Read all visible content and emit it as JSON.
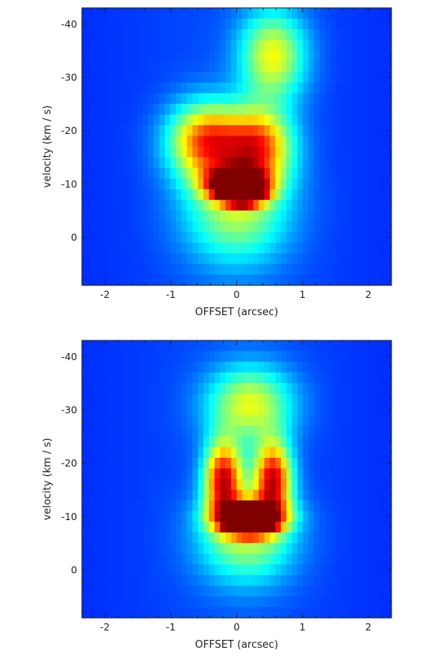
{
  "chart_data": [
    {
      "type": "heatmap",
      "title": "",
      "xlabel": "OFFSET (arcsec)",
      "ylabel": "velocity (km / s)",
      "xlim": [
        -2.35,
        2.35
      ],
      "ylim": [
        9,
        -43
      ],
      "x_ticks": [
        -2,
        -1,
        0,
        1,
        2
      ],
      "x_tick_labels": [
        "-2",
        "-1",
        "0",
        "1",
        "2"
      ],
      "y_ticks": [
        -40,
        -30,
        -20,
        -10,
        0
      ],
      "y_tick_labels": [
        "-40",
        "-30",
        "-20",
        "-10",
        "0"
      ],
      "colormap": "jet",
      "features": [
        {
          "x": 0.55,
          "y": -34,
          "sx": 0.35,
          "sy": 6,
          "amp": 0.42
        },
        {
          "x": 0.0,
          "y": -5,
          "sx": 0.55,
          "sy": 7,
          "amp": 0.35
        },
        {
          "x": -0.45,
          "y": -18,
          "sx": 0.4,
          "sy": 5,
          "amp": 0.6
        },
        {
          "x": 0.35,
          "y": -17,
          "sx": 0.35,
          "sy": 5,
          "amp": 0.55
        },
        {
          "x": 0.0,
          "y": -10,
          "sx": 0.3,
          "sy": 2,
          "amp": 0.9
        },
        {
          "x": 0.1,
          "y": -8,
          "sx": 0.2,
          "sy": 1.2,
          "amp": 1.0
        }
      ]
    },
    {
      "type": "heatmap",
      "title": "",
      "xlabel": "OFFSET (arcsec)",
      "ylabel": "velocity (km / s)",
      "xlim": [
        -2.35,
        2.35
      ],
      "ylim": [
        9,
        -43
      ],
      "x_ticks": [
        -2,
        -1,
        0,
        1,
        2
      ],
      "x_tick_labels": [
        "-2",
        "-1",
        "0",
        "1",
        "2"
      ],
      "y_ticks": [
        -40,
        -30,
        -20,
        -10,
        0
      ],
      "y_tick_labels": [
        "-40",
        "-30",
        "-20",
        "-10",
        "0"
      ],
      "colormap": "jet",
      "features": [
        {
          "x": 0.2,
          "y": -31,
          "sx": 0.45,
          "sy": 5,
          "amp": 0.4
        },
        {
          "x": 0.15,
          "y": -6,
          "sx": 0.5,
          "sy": 6,
          "amp": 0.35
        },
        {
          "x": -0.2,
          "y": -17,
          "sx": 0.2,
          "sy": 5,
          "amp": 0.7
        },
        {
          "x": 0.55,
          "y": -17,
          "sx": 0.2,
          "sy": 5,
          "amp": 0.7
        },
        {
          "x": 0.2,
          "y": -10,
          "sx": 0.35,
          "sy": 2,
          "amp": 0.8
        },
        {
          "x": 0.2,
          "y": -8,
          "sx": 0.2,
          "sy": 1,
          "amp": 1.0
        }
      ]
    }
  ]
}
